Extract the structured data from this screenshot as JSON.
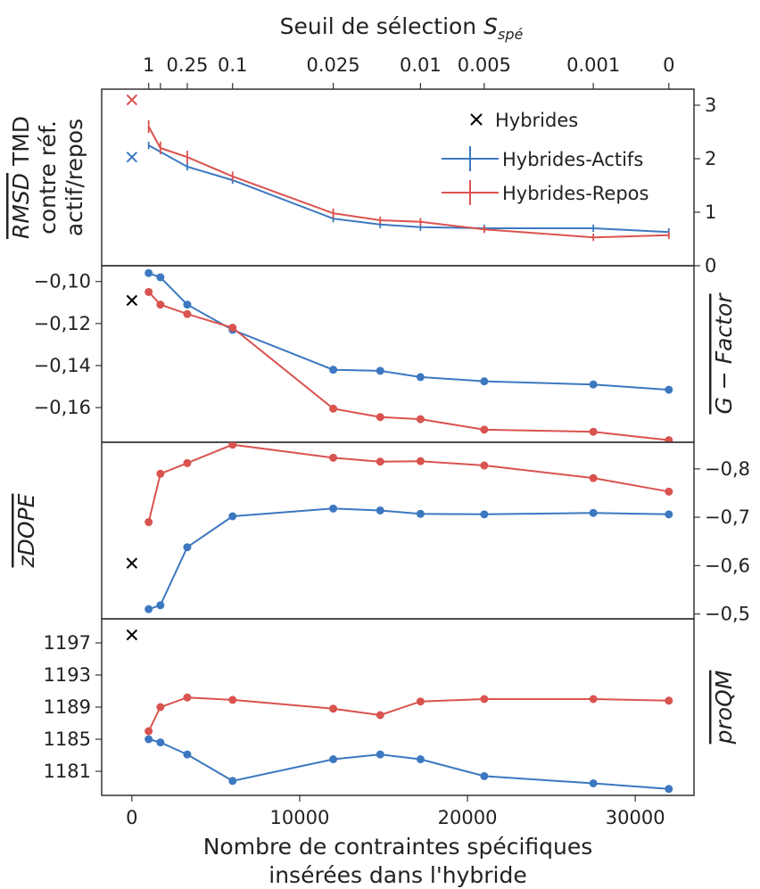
{
  "chart_data": {
    "type": "line",
    "x_axis": {
      "label_line1": "Nombre de contraintes spécifiques",
      "label_line2": "insérées dans l'hybride",
      "range": [
        -1800,
        33500
      ],
      "ticks": [
        0,
        10000,
        20000,
        30000
      ],
      "tick_labels": [
        "0",
        "10000",
        "20000",
        "30000"
      ]
    },
    "top_axis": {
      "label_prefix": "Seuil de sélection ",
      "label_var": "S",
      "label_sub": "spé",
      "ticks": [
        1000,
        1700,
        3300,
        6000,
        12000,
        17200,
        21000,
        27500,
        32000
      ],
      "tick_labels": [
        "1",
        "0.25",
        "0.1",
        "0.025",
        "0.01",
        "0.005",
        "0.001",
        "0"
      ]
    },
    "tick_label_positions": [
      1000,
      3300,
      6000,
      12000,
      17200,
      21000,
      27500,
      32000
    ],
    "x": [
      1000,
      1700,
      3300,
      6000,
      12000,
      14800,
      17200,
      21000,
      27500,
      32000
    ],
    "hybrides_x": 0,
    "colors": {
      "actifs": "#3c78c0",
      "repos": "#d9534f",
      "hybrides": "#000000"
    },
    "panels": [
      {
        "id": "rmsd",
        "ylabel_over": "RMSD",
        "ylabel_rest": " TMD",
        "ylabel_line2": "contre réf.",
        "ylabel_line3": "actif/repos",
        "ylabel_side": "left",
        "ticks_side": "right",
        "ylim": [
          0,
          3.3
        ],
        "yticks": [
          0,
          1,
          2,
          3
        ],
        "ytick_labels": [
          "0",
          "1",
          "2",
          "3"
        ],
        "errorbars": true,
        "series": [
          {
            "name": "Hybrides-Actifs",
            "color": "actifs",
            "values": [
              2.25,
              null,
              1.85,
              1.6,
              0.88,
              0.77,
              0.72,
              0.7,
              0.7,
              0.63
            ],
            "errors": [
              0.07,
              null,
              0.07,
              0.07,
              0.07,
              0.07,
              0.07,
              0.07,
              0.07,
              0.07
            ]
          },
          {
            "name": "Hybrides-Repos",
            "color": "repos",
            "values": [
              2.6,
              2.2,
              2.03,
              1.67,
              0.98,
              0.85,
              0.82,
              0.68,
              0.53,
              0.57
            ],
            "errors": [
              0.12,
              0.12,
              0.12,
              0.09,
              0.09,
              0.07,
              0.07,
              0.07,
              0.07,
              0.07
            ]
          }
        ],
        "hybrides": [
          {
            "value": 3.1,
            "color": "repos"
          },
          {
            "value": 2.03,
            "color": "actifs"
          }
        ]
      },
      {
        "id": "gfactor",
        "ylabel_over": "G − Factor",
        "ylabel_side": "right",
        "ticks_side": "left",
        "ylim": [
          -0.1765,
          -0.0925
        ],
        "invert": false,
        "yticks": [
          -0.1,
          -0.12,
          -0.14,
          -0.16
        ],
        "ytick_labels": [
          "−0,10",
          "−0,12",
          "−0,14",
          "−0,16"
        ],
        "series": [
          {
            "name": "Hybrides-Actifs",
            "color": "actifs",
            "values": [
              -0.096,
              -0.098,
              -0.111,
              -0.123,
              -0.142,
              -0.1425,
              -0.1455,
              -0.1475,
              -0.149,
              -0.1515
            ]
          },
          {
            "name": "Hybrides-Repos",
            "color": "repos",
            "values": [
              -0.105,
              -0.111,
              -0.1155,
              -0.122,
              -0.1605,
              -0.1645,
              -0.1655,
              -0.1705,
              -0.1715,
              -0.1755
            ]
          }
        ],
        "hybrides": [
          {
            "value": -0.109,
            "color": "hybrides"
          }
        ]
      },
      {
        "id": "zdope",
        "ylabel_over": "zDOPE",
        "ylabel_side": "left",
        "ticks_side": "right",
        "ylim": [
          -0.49,
          -0.855
        ],
        "yticks": [
          -0.5,
          -0.6,
          -0.7,
          -0.8
        ],
        "ytick_labels": [
          "−0,5",
          "−0,6",
          "−0,7",
          "−0,8"
        ],
        "series": [
          {
            "name": "Hybrides-Actifs",
            "color": "actifs",
            "values": [
              -0.51,
              -0.518,
              -0.638,
              -0.702,
              -0.718,
              -0.714,
              -0.707,
              -0.706,
              -0.709,
              -0.706
            ]
          },
          {
            "name": "Hybrides-Repos",
            "color": "repos",
            "values": [
              -0.69,
              -0.79,
              -0.812,
              -0.85,
              -0.823,
              -0.815,
              -0.816,
              -0.807,
              -0.781,
              -0.753
            ]
          }
        ],
        "hybrides": [
          {
            "value": -0.605,
            "color": "hybrides"
          }
        ]
      },
      {
        "id": "proqm",
        "ylabel_over": "proQM",
        "ylabel_side": "right",
        "ticks_side": "left",
        "ylim": [
          1178,
          1200
        ],
        "yticks": [
          1181,
          1185,
          1189,
          1193,
          1197
        ],
        "ytick_labels": [
          "1181",
          "1185",
          "1189",
          "1193",
          "1197"
        ],
        "series": [
          {
            "name": "Hybrides-Actifs",
            "color": "actifs",
            "values": [
              1185,
              1184.6,
              1183.1,
              1179.8,
              1182.5,
              1183.1,
              1182.5,
              1180.4,
              1179.5,
              1178.8
            ]
          },
          {
            "name": "Hybrides-Repos",
            "color": "repos",
            "values": [
              1186,
              1189,
              1190.2,
              1189.9,
              1188.8,
              1188,
              1189.7,
              1190,
              1190,
              1189.8
            ]
          }
        ],
        "hybrides": [
          {
            "value": 1198,
            "color": "hybrides"
          }
        ]
      }
    ],
    "legend": {
      "placement": "top-right",
      "entries": [
        {
          "label": "Hybrides",
          "marker": "x",
          "color": "hybrides"
        },
        {
          "label": "Hybrides-Actifs",
          "marker": "errorbar-line",
          "color": "actifs"
        },
        {
          "label": "Hybrides-Repos",
          "marker": "errorbar-line",
          "color": "repos"
        }
      ]
    },
    "grid": false
  }
}
